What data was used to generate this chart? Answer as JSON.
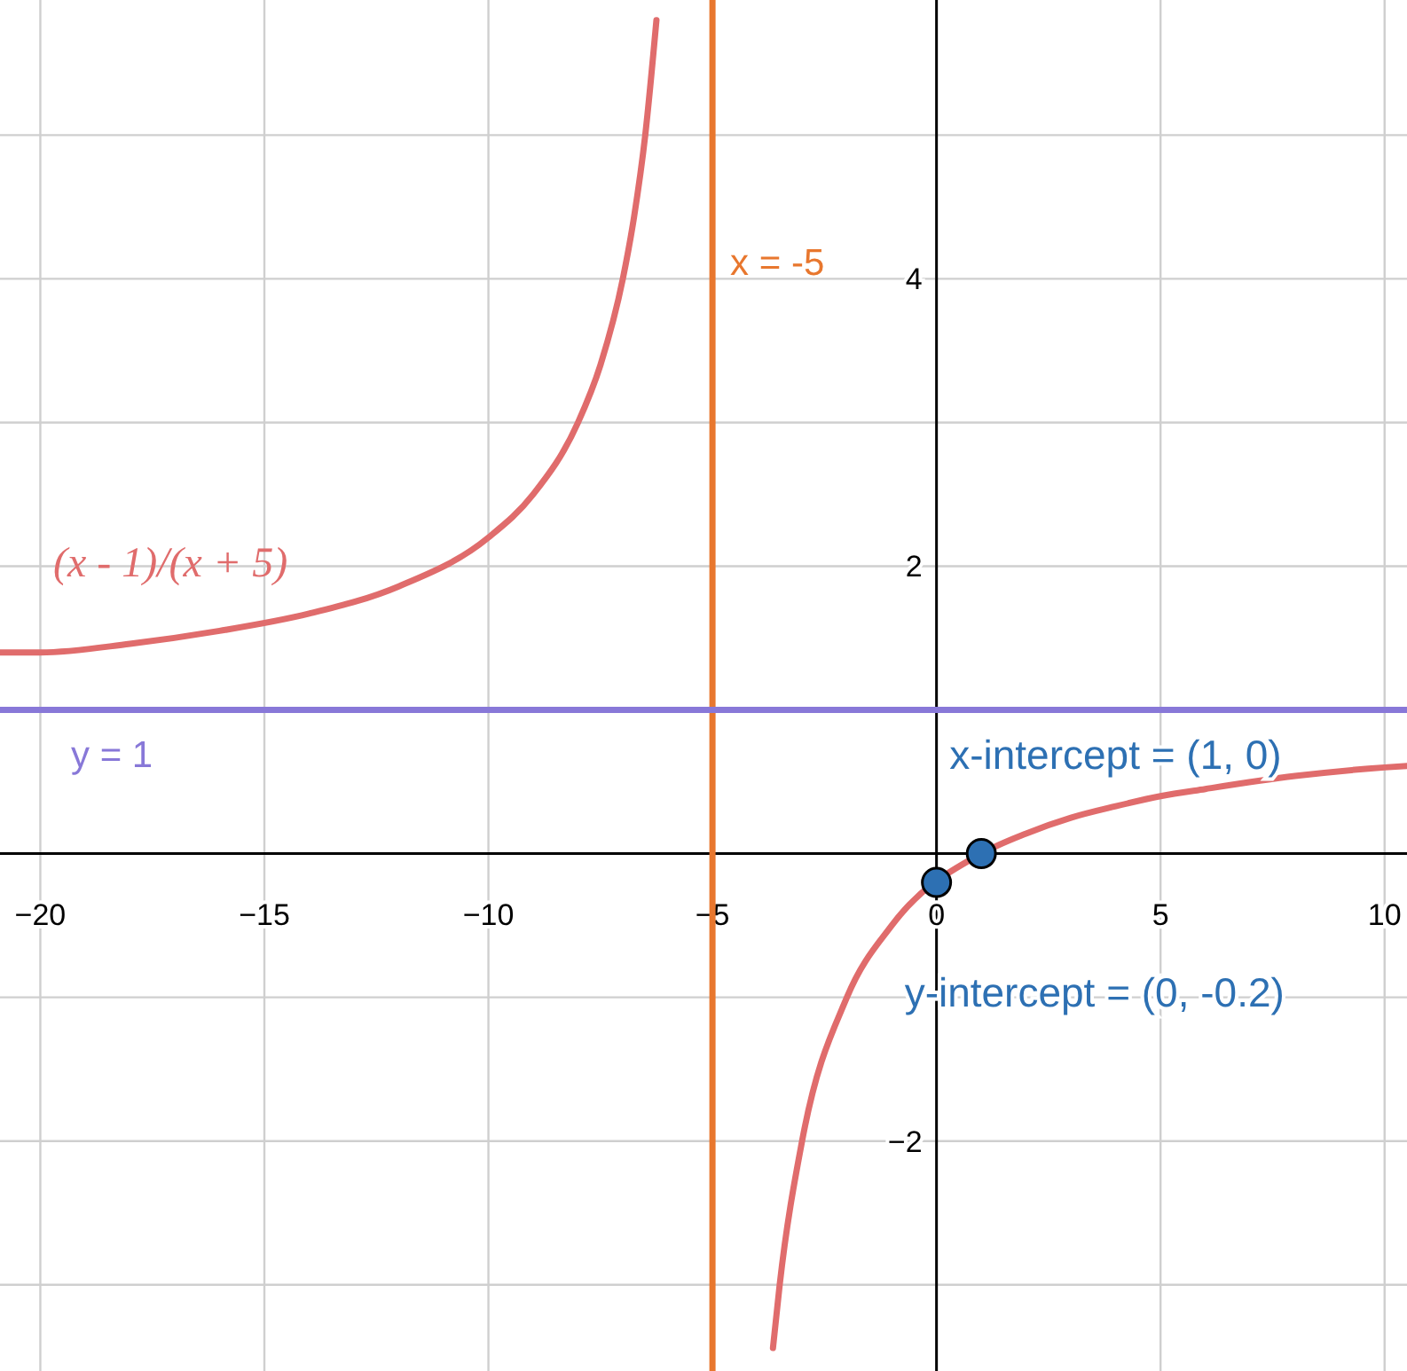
{
  "chart_data": {
    "type": "line",
    "xlim": [
      -20.9,
      10.5
    ],
    "ylim": [
      -3.6,
      5.94
    ],
    "xticks": [
      -20,
      -15,
      -10,
      -5,
      0,
      5,
      10
    ],
    "yticks": [
      {
        "value": -3,
        "label": null
      },
      -2,
      {
        "value": -1,
        "label": null
      },
      {
        "value": 0,
        "label": null
      },
      {
        "value": 1,
        "label": null
      },
      2,
      {
        "value": 3,
        "label": null
      },
      4,
      {
        "value": 5,
        "label": null
      }
    ],
    "grid": true,
    "series": [
      {
        "name": "(x - 1)/(x + 5)",
        "color": "#e06c6c",
        "x": [
          -20.9,
          -20,
          -18,
          -16,
          -14,
          -12,
          -10,
          -9,
          -8,
          -7.5,
          -7,
          -6.75,
          -6.5,
          -6.25,
          -5,
          -3.65,
          -3.5,
          -3,
          -2,
          -1,
          1,
          2,
          3,
          4,
          5,
          6,
          8,
          10,
          10.5
        ],
        "values": [
          1.4,
          1.4,
          1.46,
          1.55,
          1.67,
          1.86,
          2.2,
          2.5,
          3,
          3.4,
          4,
          4.43,
          5,
          5.8,
          null,
          -3.44,
          -3,
          -2,
          -1,
          -0.5,
          0,
          0.14,
          0.25,
          0.33,
          0.4,
          0.45,
          0.54,
          0.6,
          0.61
        ]
      },
      {
        "type": "scatter",
        "color": "#2d70b3",
        "marker": "circle",
        "x": [
          0,
          1
        ],
        "values": [
          -0.2,
          0
        ]
      }
    ],
    "ref_lines": [
      {
        "axis": "x",
        "value": -5,
        "label": "x = -5",
        "color": "#e8772e"
      },
      {
        "axis": "y",
        "value": 1,
        "label": "y = 1",
        "color": "#8878d8"
      }
    ],
    "annotations": [
      {
        "text": "x-intercept = (1, 0)",
        "x": 1,
        "y": 0
      },
      {
        "text": "y-intercept = (0, -0.2)",
        "x": 0,
        "y": -0.2
      }
    ]
  }
}
